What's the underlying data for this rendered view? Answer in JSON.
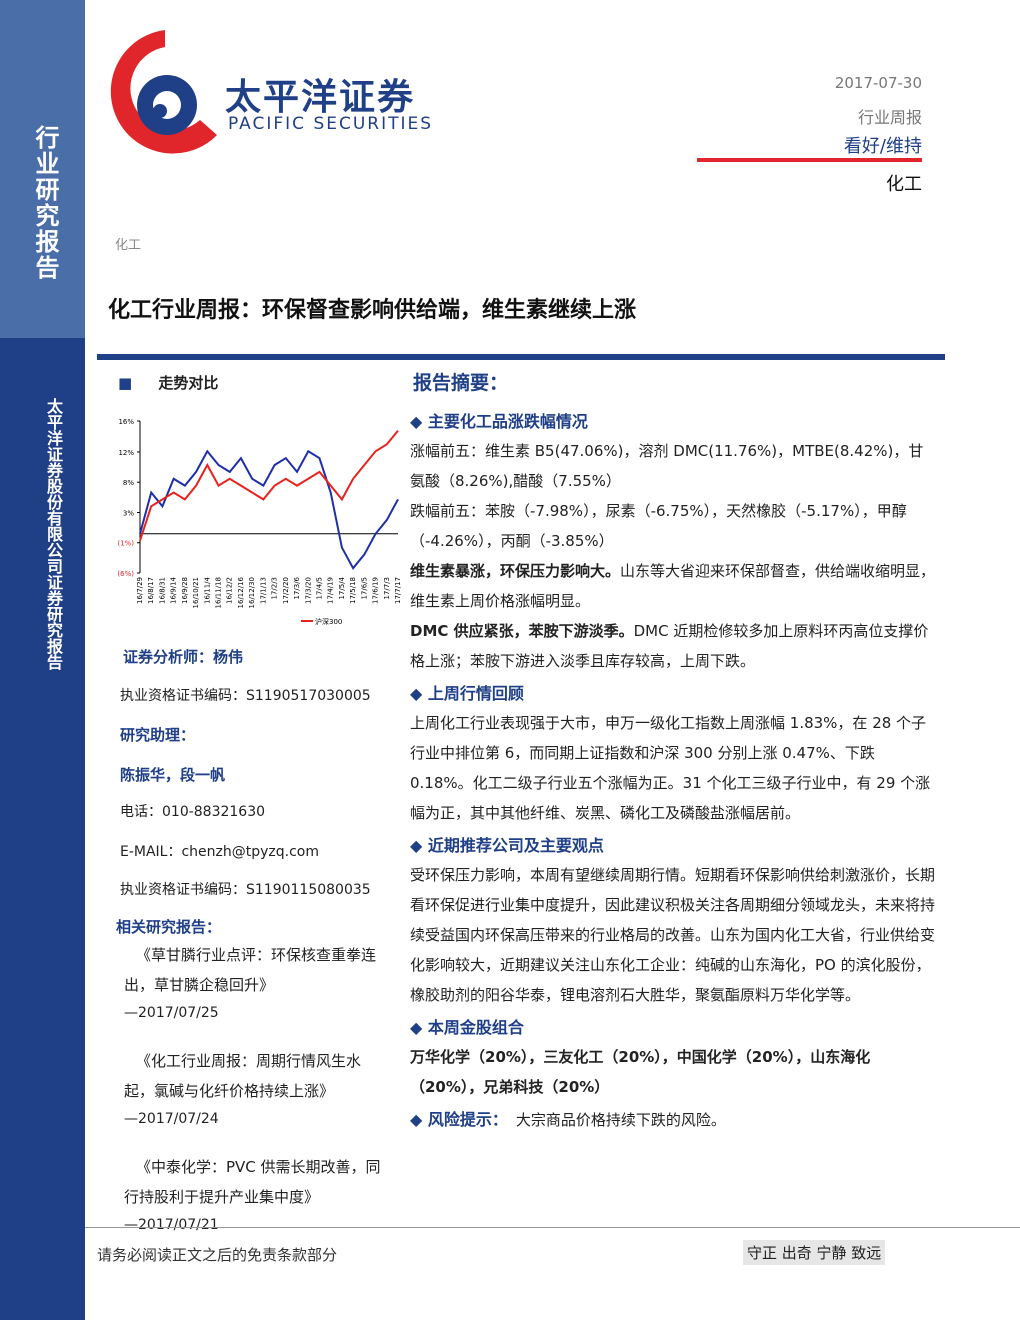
{
  "sidebar": {
    "top": "行业研究报告",
    "bottom": "太平洋证券股份有限公司证券研究报告"
  },
  "header": {
    "logo_cn": "太平洋证券",
    "logo_en": "PACIFIC SECURITIES",
    "date": "2017-07-30",
    "report_type": "行业周报",
    "rating": "看好/维持",
    "industry": "化工"
  },
  "category": "化工",
  "title": "化工行业周报：环保督查影响供给端，维生素继续上涨",
  "left": {
    "chart_heading": "走势对比",
    "chart_data": {
      "type": "line",
      "categories": [
        "16/7/29",
        "16/8/17",
        "16/8/31",
        "16/9/14",
        "16/9/28",
        "16/10/21",
        "16/11/4",
        "16/11/18",
        "16/12/2",
        "16/12/16",
        "16/12/30",
        "17/1/13",
        "17/2/3",
        "17/2/20",
        "17/3/6",
        "17/3/20",
        "17/4/5",
        "17/4/19",
        "17/5/4",
        "17/5/18",
        "17/6/5",
        "17/6/19",
        "17/7/3",
        "17/7/17"
      ],
      "series": [
        {
          "color": "#1f2fa8",
          "values": [
            0,
            6,
            4,
            8,
            7,
            9,
            12,
            10,
            9,
            11,
            8,
            7,
            10,
            11,
            9,
            12,
            11,
            6,
            -2,
            -5,
            -3,
            0,
            2,
            5
          ]
        },
        {
          "name": "沪深300",
          "color": "#e8231e",
          "values": [
            -1,
            4,
            5,
            6,
            5,
            7,
            10,
            7,
            8,
            7,
            6,
            5,
            7,
            8,
            7,
            8,
            9,
            7,
            5,
            8,
            10,
            12,
            13,
            15
          ]
        }
      ],
      "ylim": [
        -5.7,
        16.4
      ],
      "yticks": [
        {
          "value": 16.4,
          "label": "16%"
        },
        {
          "value": 11.9,
          "label": "12%"
        },
        {
          "value": 7.5,
          "label": "8%"
        },
        {
          "value": 3.1,
          "label": "3%"
        },
        {
          "value": -1.3,
          "label": "(1%)"
        },
        {
          "value": -5.7,
          "label": "(6%)"
        }
      ]
    },
    "analyst": "证券分析师：杨伟",
    "analyst_cert": "执业资格证书编码：S1190517030005",
    "assistant_heading": "研究助理：",
    "assistants": "陈振华，段一帆",
    "phone": "电话：010-88321630",
    "email": "E-MAIL：chenzh@tpyzq.com",
    "assistant_cert": "执业资格证书编码：S1190115080035",
    "related_heading": "相关研究报告：",
    "related": [
      {
        "title": "《草甘膦行业点评：环保核查重拳连出，草甘膦企稳回升》",
        "date": "—2017/07/25"
      },
      {
        "title": "《化工行业周报：周期行情风生水起，氯碱与化纤价格持续上涨》",
        "date": "—2017/07/24"
      },
      {
        "title": "《中泰化学：PVC 供需长期改善，同行持股利于提升产业集中度》",
        "date": "—2017/07/21"
      }
    ]
  },
  "summary": {
    "heading": "报告摘要：",
    "sections": [
      {
        "heading": "主要化工品涨跌幅情况",
        "paragraphs": [
          {
            "text": "涨幅前五：维生素 B5(47.06%)，溶剂 DMC(11.76%)，MTBE(8.42%)，甘氨酸（8.26%),醋酸（7.55%）"
          },
          {
            "text": "跌幅前五：苯胺（-7.98%），尿素（-6.75%），天然橡胶（-5.17%），甲醇（-4.26%），丙酮（-3.85%）"
          },
          {
            "bold": "维生素暴涨，环保压力影响大。",
            "text": "山东等大省迎来环保部督查，供给端收缩明显，维生素上周价格涨幅明显。"
          },
          {
            "bold": "DMC 供应紧张，苯胺下游淡季。",
            "text": "DMC 近期检修较多加上原料环丙高位支撑价格上涨；苯胺下游进入淡季且库存较高，上周下跌。"
          }
        ]
      },
      {
        "heading": "上周行情回顾",
        "paragraphs": [
          {
            "text": "上周化工行业表现强于大市，申万一级化工指数上周涨幅 1.83%，在 28 个子行业中排位第 6，而同期上证指数和沪深 300 分别上涨 0.47%、下跌 0.18%。化工二级子行业五个涨幅为正。31 个化工三级子行业中，有 29 个涨幅为正，其中其他纤维、炭黑、磷化工及磷酸盐涨幅居前。"
          }
        ]
      },
      {
        "heading": "近期推荐公司及主要观点",
        "paragraphs": [
          {
            "text": "受环保压力影响，本周有望继续周期行情。短期看环保影响供给刺激涨价，长期看环保促进行业集中度提升，因此建议积极关注各周期细分领域龙头，未来将持续受益国内环保高压带来的行业格局的改善。山东为国内化工大省，行业供给变化影响较大，近期建议关注山东化工企业：纯碱的山东海化，PO 的滨化股份，橡胶助剂的阳谷华泰，锂电溶剂石大胜华，聚氨酯原料万华化学等。"
          }
        ]
      },
      {
        "heading": "本周金股组合",
        "paragraphs": [
          {
            "bold": "万华化学（20%），三友化工（20%），中国化学（20%），山东海化（20%），兄弟科技（20%）"
          }
        ]
      }
    ],
    "risk_heading": "风险提示：",
    "risk_text": "大宗商品价格持续下跌的风险。"
  },
  "footer": {
    "disclaimer": "请务必阅读正文之后的免责条款部分",
    "motto": "守正 出奇 宁静 致远"
  }
}
